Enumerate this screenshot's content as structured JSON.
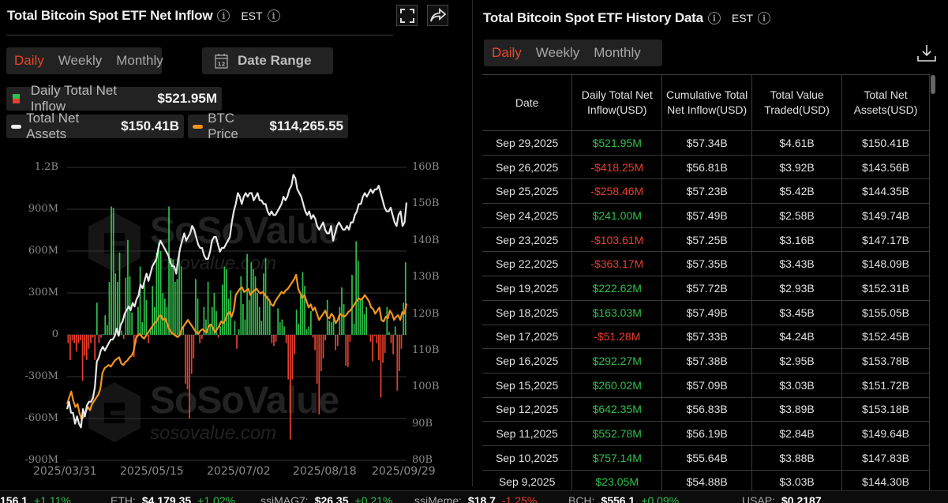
{
  "left": {
    "title": "Total Bitcoin Spot ETF Net Inflow",
    "timezone": "EST",
    "tabs": [
      "Daily",
      "Weekly",
      "Monthly"
    ],
    "active_tab": "Daily",
    "date_range_label": "Date Range",
    "calendar_day": "12",
    "legend": {
      "inflow_label": "Daily Total Net Inflow",
      "inflow_value": "$521.95M",
      "assets_label": "Total Net Assets",
      "assets_value": "$150.41B",
      "btc_label": "BTC Price",
      "btc_value": "$114,265.55"
    },
    "watermark": {
      "brand": "SoSoValue",
      "site": "sosovalue.com"
    }
  },
  "right": {
    "title": "Total Bitcoin Spot ETF History Data",
    "timezone": "EST",
    "tabs": [
      "Daily",
      "Weekly",
      "Monthly"
    ],
    "active_tab": "Daily",
    "table": {
      "headers": [
        "Date",
        "Daily Total Net Inflow(USD)",
        "Cumulative Total Net Inflow(USD)",
        "Total Value Traded(USD)",
        "Total Net Assets(USD)"
      ],
      "rows": [
        {
          "date": "Sep 29,2025",
          "inflow": "$521.95M",
          "sign": "pos",
          "cumulative": "$57.34B",
          "traded": "$4.61B",
          "assets": "$150.41B"
        },
        {
          "date": "Sep 26,2025",
          "inflow": "-$418.25M",
          "sign": "neg",
          "cumulative": "$56.81B",
          "traded": "$3.92B",
          "assets": "$143.56B"
        },
        {
          "date": "Sep 25,2025",
          "inflow": "-$258.46M",
          "sign": "neg",
          "cumulative": "$57.23B",
          "traded": "$5.42B",
          "assets": "$144.35B"
        },
        {
          "date": "Sep 24,2025",
          "inflow": "$241.00M",
          "sign": "pos",
          "cumulative": "$57.49B",
          "traded": "$2.58B",
          "assets": "$149.74B"
        },
        {
          "date": "Sep 23,2025",
          "inflow": "-$103.61M",
          "sign": "neg",
          "cumulative": "$57.25B",
          "traded": "$3.16B",
          "assets": "$147.17B"
        },
        {
          "date": "Sep 22,2025",
          "inflow": "-$363.17M",
          "sign": "neg",
          "cumulative": "$57.35B",
          "traded": "$3.43B",
          "assets": "$148.09B"
        },
        {
          "date": "Sep 19,2025",
          "inflow": "$222.62M",
          "sign": "pos",
          "cumulative": "$57.72B",
          "traded": "$2.93B",
          "assets": "$152.31B"
        },
        {
          "date": "Sep 18,2025",
          "inflow": "$163.03M",
          "sign": "pos",
          "cumulative": "$57.49B",
          "traded": "$3.45B",
          "assets": "$155.05B"
        },
        {
          "date": "Sep 17,2025",
          "inflow": "-$51.28M",
          "sign": "neg",
          "cumulative": "$57.33B",
          "traded": "$4.24B",
          "assets": "$152.45B"
        },
        {
          "date": "Sep 16,2025",
          "inflow": "$292.27M",
          "sign": "pos",
          "cumulative": "$57.38B",
          "traded": "$2.95B",
          "assets": "$153.78B"
        },
        {
          "date": "Sep 15,2025",
          "inflow": "$260.02M",
          "sign": "pos",
          "cumulative": "$57.09B",
          "traded": "$3.03B",
          "assets": "$151.72B"
        },
        {
          "date": "Sep 12,2025",
          "inflow": "$642.35M",
          "sign": "pos",
          "cumulative": "$56.83B",
          "traded": "$3.89B",
          "assets": "$153.18B"
        },
        {
          "date": "Sep 11,2025",
          "inflow": "$552.78M",
          "sign": "pos",
          "cumulative": "$56.19B",
          "traded": "$2.84B",
          "assets": "$149.64B"
        },
        {
          "date": "Sep 10,2025",
          "inflow": "$757.14M",
          "sign": "pos",
          "cumulative": "$55.64B",
          "traded": "$3.88B",
          "assets": "$147.83B"
        },
        {
          "date": "Sep 9,2025",
          "inflow": "$23.05M",
          "sign": "pos",
          "cumulative": "$54.88B",
          "traded": "$3.03B",
          "assets": "$144.30B"
        }
      ]
    }
  },
  "ticker": [
    {
      "name": "",
      "price": "156.1",
      "change": "+1.11%",
      "dir": "up"
    },
    {
      "name": "ETH:",
      "price": "$4,179.35",
      "change": "+1.02%",
      "dir": "up"
    },
    {
      "name": "ssiMAG7:",
      "price": "$26.35",
      "change": "+0.21%",
      "dir": "up"
    },
    {
      "name": "ssiMeme:",
      "price": "$18.7",
      "change": "-1.25%",
      "dir": "down"
    },
    {
      "name": "BCH:",
      "price": "$556.1",
      "change": "+0.09%",
      "dir": "up"
    },
    {
      "name": "USAP:",
      "price": "$0.2187",
      "change": "",
      "dir": "up"
    }
  ],
  "colors": {
    "accent": "#e8462a",
    "inflow_pos": "#2fc04b",
    "inflow_neg": "#e8402e",
    "assets_line": "#e8e8e8",
    "btc_line": "#f0961e"
  },
  "chart_data": {
    "type": "bar+line",
    "title": "Total Bitcoin Spot ETF Net Inflow",
    "x_ticks": [
      "2025/03/31",
      "2025/05/15",
      "2025/07/02",
      "2025/08/18",
      "2025/09/29"
    ],
    "left_axis": {
      "label": "Daily Total Net Inflow",
      "ticks": [
        "1.2B",
        "900M",
        "600M",
        "300M",
        "0",
        "-300M",
        "-600M",
        "-900M"
      ],
      "range": [
        -900,
        1200
      ],
      "unit": "M"
    },
    "right_axis": {
      "label": "Total Net Assets",
      "ticks": [
        "160B",
        "150B",
        "140B",
        "130B",
        "120B",
        "110B",
        "100B",
        "90B",
        "80B"
      ],
      "range": [
        80,
        160
      ],
      "unit": "B"
    },
    "grid": true,
    "series": [
      {
        "name": "Daily Total Net Inflow",
        "type": "bar",
        "axis": "left",
        "unit": "M",
        "values": [
          -60,
          -180,
          -40,
          -60,
          -120,
          -60,
          -40,
          -330,
          -150,
          -180,
          -100,
          -60,
          -20,
          -180,
          230,
          -60,
          -20,
          5,
          140,
          70,
          380,
          920,
          910,
          440,
          380,
          590,
          30,
          -30,
          410,
          680,
          420,
          160,
          -160,
          -60,
          200,
          490,
          90,
          380,
          250,
          -60,
          40,
          350,
          200,
          590,
          660,
          600,
          300,
          260,
          200,
          920,
          550,
          540,
          380,
          400,
          600,
          490,
          60,
          -350,
          -390,
          -600,
          -280,
          -170,
          400,
          260,
          -60,
          -30,
          200,
          110,
          380,
          80,
          200,
          300,
          170,
          -20,
          60,
          360,
          490,
          470,
          260,
          320,
          0,
          100,
          -100,
          40,
          420,
          220,
          110,
          580,
          250,
          520,
          470,
          420,
          300,
          200,
          100,
          440,
          550,
          280,
          230,
          -60,
          -80,
          -50,
          190,
          90,
          110,
          60,
          -60,
          -320,
          -750,
          -320,
          -140,
          180,
          80,
          280,
          450,
          350,
          40,
          60,
          170,
          -20,
          -110,
          -350,
          -570,
          -260,
          -170,
          -40,
          250,
          100,
          90,
          120,
          -110,
          -80,
          200,
          340,
          220,
          -220,
          -230,
          -50,
          430,
          80,
          670,
          530,
          250,
          260,
          150,
          200,
          0,
          -50,
          -190,
          -10,
          -60,
          -180,
          -450,
          -200,
          -130,
          200,
          20,
          -60,
          -140,
          60,
          -400,
          -260,
          -100,
          230,
          520
        ]
      },
      {
        "name": "Total Net Assets",
        "type": "line",
        "axis": "right",
        "unit": "B",
        "values": [
          94,
          96,
          93,
          93,
          90,
          92,
          90,
          89,
          94,
          92,
          95,
          96,
          96,
          97,
          100,
          107,
          108,
          110,
          111,
          110,
          111,
          112,
          113,
          113,
          114,
          116,
          114,
          117,
          118,
          120,
          121,
          122,
          121,
          123,
          122,
          124,
          125,
          128,
          127,
          129,
          131,
          129,
          131,
          133,
          134,
          135,
          138,
          140,
          139,
          138,
          137,
          136,
          134,
          133,
          133,
          131,
          135,
          138,
          140,
          142,
          140,
          141,
          142,
          144,
          143,
          141,
          139,
          138,
          138,
          136,
          135,
          135,
          137,
          140,
          141,
          141,
          139,
          137,
          138,
          138,
          139,
          140,
          141,
          145,
          148,
          150,
          153,
          152,
          150,
          152,
          153,
          152,
          153,
          153,
          151,
          152,
          153,
          151,
          151,
          150,
          150,
          148,
          147,
          148,
          147,
          147,
          148,
          149,
          150,
          152,
          151,
          152,
          154,
          155,
          158,
          157,
          154,
          153,
          152,
          150,
          148,
          147,
          148,
          146,
          147,
          146,
          144,
          143,
          144,
          145,
          143,
          142,
          142,
          144,
          140,
          142,
          144,
          145,
          144,
          143,
          143,
          144,
          143,
          145,
          145,
          147,
          148,
          150,
          150,
          152,
          153,
          152,
          153,
          154,
          153,
          154,
          154,
          155,
          153,
          151,
          149,
          148,
          148,
          149,
          147,
          145,
          144,
          147,
          148,
          144,
          145,
          150.4
        ]
      },
      {
        "name": "BTC Price",
        "type": "line",
        "axis": "right",
        "unit": "USD",
        "values": [
          82000,
          84000,
          86000,
          83000,
          81000,
          82000,
          79000,
          77000,
          78000,
          79500,
          81000,
          80000,
          82000,
          83000,
          84000,
          85000,
          87000,
          92000,
          93500,
          94000,
          94500,
          94000,
          95000,
          96000,
          96500,
          97000,
          95000,
          94500,
          95500,
          96000,
          97000,
          97500,
          99000,
          103000,
          104000,
          104500,
          103500,
          103000,
          104000,
          105000,
          106000,
          107000,
          108000,
          108500,
          110000,
          110500,
          109000,
          109500,
          108000,
          106000,
          105000,
          104500,
          104000,
          103500,
          104000,
          106000,
          107000,
          108000,
          109000,
          108000,
          107000,
          106000,
          105000,
          104500,
          105500,
          106000,
          105500,
          105000,
          107000,
          107500,
          106500,
          105000,
          106000,
          107000,
          108500,
          108000,
          109000,
          111000,
          111500,
          110000,
          112000,
          117000,
          118000,
          119000,
          119500,
          118000,
          118500,
          119000,
          117000,
          118000,
          118500,
          119000,
          118000,
          117500,
          118000,
          117000,
          116000,
          115500,
          114000,
          113500,
          115000,
          116000,
          117000,
          118000,
          117500,
          118500,
          119000,
          120000,
          121000,
          122000,
          123500,
          119000,
          117500,
          116000,
          117000,
          115000,
          113000,
          114000,
          112000,
          113000,
          111000,
          109000,
          110000,
          111000,
          112000,
          110000,
          109500,
          111000,
          110000,
          108000,
          109000,
          111000,
          110500,
          110000,
          110500,
          111500,
          112000,
          113000,
          114000,
          115000,
          116000,
          115500,
          116000,
          117000,
          116000,
          115000,
          113000,
          112500,
          111000,
          112000,
          113000,
          109000,
          108500,
          110000,
          109500,
          112000,
          111000,
          109000,
          110000,
          110500,
          109000,
          111500,
          111000,
          114265.55
        ]
      }
    ]
  }
}
